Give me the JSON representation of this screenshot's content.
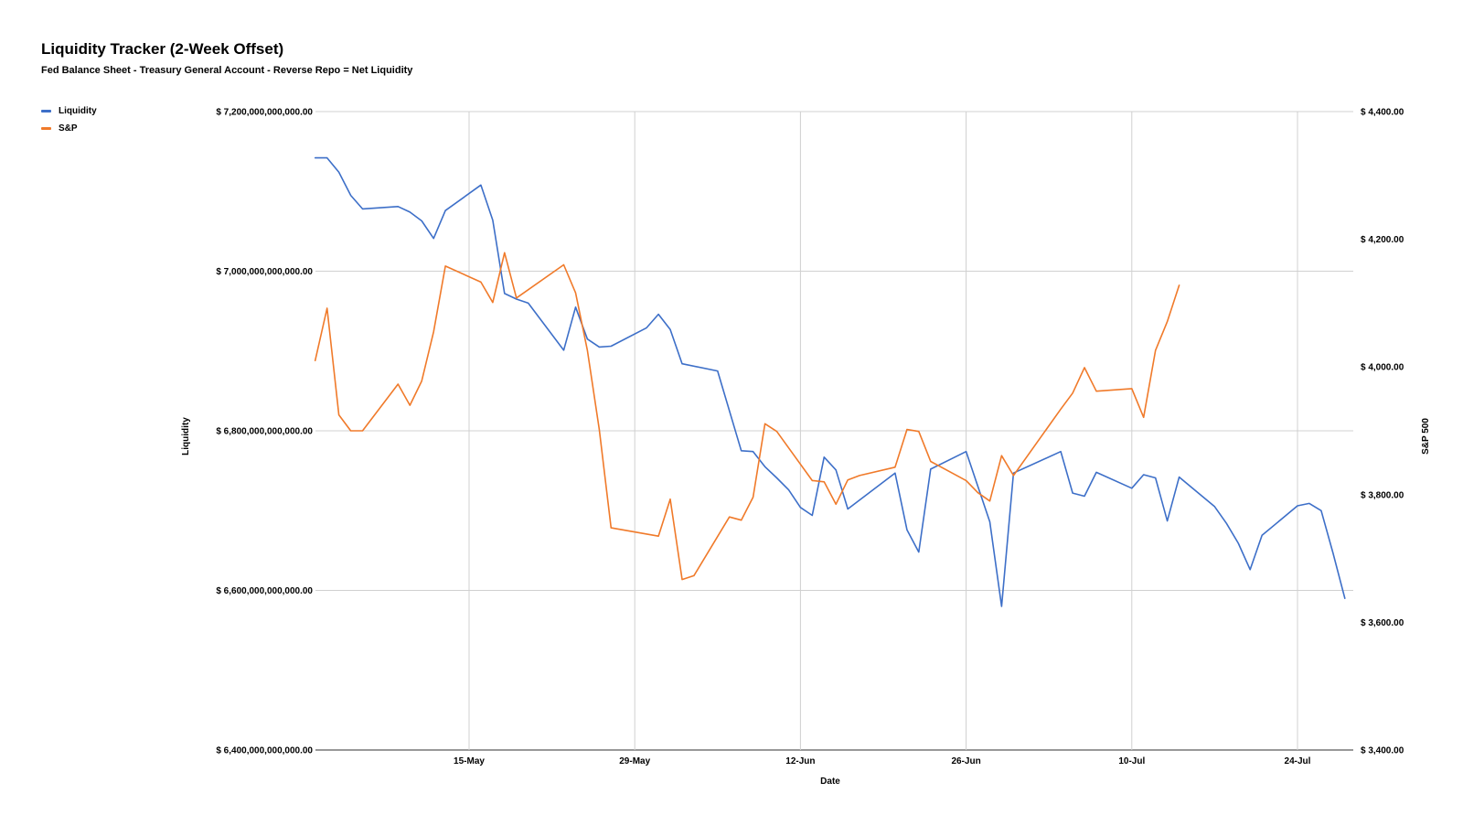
{
  "chart_data": {
    "type": "line",
    "title": "Liquidity Tracker (2-Week Offset)",
    "subtitle": "Fed Balance Sheet - Treasury General Account - Reverse Repo = Net Liquidity",
    "xlabel": "Date",
    "ylabel_left": "Liquidity",
    "ylabel_right": "S&P 500",
    "legend_position": "top-left",
    "grid": true,
    "x_range": [
      "2023-05-04",
      "2023-07-30"
    ],
    "x_ticks": [
      {
        "date": "2023-05-15",
        "label": "15-May"
      },
      {
        "date": "2023-05-29",
        "label": "29-May"
      },
      {
        "date": "2023-06-12",
        "label": "12-Jun"
      },
      {
        "date": "2023-06-26",
        "label": "26-Jun"
      },
      {
        "date": "2023-07-10",
        "label": "10-Jul"
      },
      {
        "date": "2023-07-24",
        "label": "24-Jul"
      }
    ],
    "ylim_left": [
      6400000000000,
      7200000000000
    ],
    "yticks_left": [
      {
        "value": 6400000000000,
        "label": "$ 6,400,000,000,000.00"
      },
      {
        "value": 6600000000000,
        "label": "$ 6,600,000,000,000.00"
      },
      {
        "value": 6800000000000,
        "label": "$ 6,800,000,000,000.00"
      },
      {
        "value": 7000000000000,
        "label": "$ 7,000,000,000,000.00"
      },
      {
        "value": 7200000000000,
        "label": "$ 7,200,000,000,000.00"
      }
    ],
    "ylim_right": [
      3400,
      4400
    ],
    "yticks_right": [
      {
        "value": 3400,
        "label": "$ 3,400.00"
      },
      {
        "value": 3600,
        "label": "$ 3,600.00"
      },
      {
        "value": 3800,
        "label": "$ 3,800.00"
      },
      {
        "value": 4000,
        "label": "$ 4,000.00"
      },
      {
        "value": 4200,
        "label": "$ 4,200.00"
      },
      {
        "value": 4400,
        "label": "$ 4,400.00"
      }
    ],
    "series": [
      {
        "name": "Liquidity",
        "axis": "left",
        "color": "#3d6fc8",
        "points": [
          [
            "2023-05-02",
            7142000000000
          ],
          [
            "2023-05-03",
            7142000000000
          ],
          [
            "2023-05-04",
            7124000000000
          ],
          [
            "2023-05-05",
            7095000000000
          ],
          [
            "2023-05-06",
            7078000000000
          ],
          [
            "2023-05-09",
            7081000000000
          ],
          [
            "2023-05-10",
            7074000000000
          ],
          [
            "2023-05-11",
            7063000000000
          ],
          [
            "2023-05-12",
            7041000000000
          ],
          [
            "2023-05-13",
            7076000000000
          ],
          [
            "2023-05-16",
            7108000000000
          ],
          [
            "2023-05-17",
            7064000000000
          ],
          [
            "2023-05-18",
            6972000000000
          ],
          [
            "2023-05-19",
            6965000000000
          ],
          [
            "2023-05-20",
            6960000000000
          ],
          [
            "2023-05-23",
            6901000000000
          ],
          [
            "2023-05-24",
            6955000000000
          ],
          [
            "2023-05-25",
            6915000000000
          ],
          [
            "2023-05-26",
            6905000000000
          ],
          [
            "2023-05-27",
            6906000000000
          ],
          [
            "2023-05-30",
            6929000000000
          ],
          [
            "2023-05-31",
            6946000000000
          ],
          [
            "2023-06-01",
            6927000000000
          ],
          [
            "2023-06-02",
            6884000000000
          ],
          [
            "2023-06-05",
            6875000000000
          ],
          [
            "2023-06-07",
            6775000000000
          ],
          [
            "2023-06-08",
            6774000000000
          ],
          [
            "2023-06-09",
            6755000000000
          ],
          [
            "2023-06-10",
            6741000000000
          ],
          [
            "2023-06-11",
            6726000000000
          ],
          [
            "2023-06-12",
            6704000000000
          ],
          [
            "2023-06-13",
            6694000000000
          ],
          [
            "2023-06-14",
            6767000000000
          ],
          [
            "2023-06-15",
            6751000000000
          ],
          [
            "2023-06-16",
            6702000000000
          ],
          [
            "2023-06-20",
            6747000000000
          ],
          [
            "2023-06-21",
            6676000000000
          ],
          [
            "2023-06-22",
            6648000000000
          ],
          [
            "2023-06-23",
            6752000000000
          ],
          [
            "2023-06-26",
            6774000000000
          ],
          [
            "2023-06-28",
            6686000000000
          ],
          [
            "2023-06-29",
            6580000000000
          ],
          [
            "2023-06-30",
            6747000000000
          ],
          [
            "2023-07-04",
            6774000000000
          ],
          [
            "2023-07-05",
            6722000000000
          ],
          [
            "2023-07-06",
            6718000000000
          ],
          [
            "2023-07-07",
            6748000000000
          ],
          [
            "2023-07-10",
            6728000000000
          ],
          [
            "2023-07-11",
            6745000000000
          ],
          [
            "2023-07-12",
            6741000000000
          ],
          [
            "2023-07-13",
            6687000000000
          ],
          [
            "2023-07-14",
            6742000000000
          ],
          [
            "2023-07-17",
            6705000000000
          ],
          [
            "2023-07-18",
            6684000000000
          ],
          [
            "2023-07-19",
            6659000000000
          ],
          [
            "2023-07-20",
            6626000000000
          ],
          [
            "2023-07-21",
            6669000000000
          ],
          [
            "2023-07-24",
            6706000000000
          ],
          [
            "2023-07-25",
            6709000000000
          ],
          [
            "2023-07-26",
            6700000000000
          ],
          [
            "2023-07-27",
            6647000000000
          ],
          [
            "2023-07-28",
            6590000000000
          ]
        ]
      },
      {
        "name": "S&P",
        "axis": "right",
        "color": "#f07a2a",
        "points": [
          [
            "2023-05-02",
            4010
          ],
          [
            "2023-05-03",
            4092
          ],
          [
            "2023-05-04",
            3925
          ],
          [
            "2023-05-05",
            3900
          ],
          [
            "2023-05-06",
            3900
          ],
          [
            "2023-05-09",
            3973
          ],
          [
            "2023-05-10",
            3940
          ],
          [
            "2023-05-11",
            3978
          ],
          [
            "2023-05-12",
            4055
          ],
          [
            "2023-05-13",
            4158
          ],
          [
            "2023-05-16",
            4133
          ],
          [
            "2023-05-17",
            4101
          ],
          [
            "2023-05-18",
            4179
          ],
          [
            "2023-05-19",
            4108
          ],
          [
            "2023-05-23",
            4160
          ],
          [
            "2023-05-24",
            4116
          ],
          [
            "2023-05-25",
            4026
          ],
          [
            "2023-05-26",
            3902
          ],
          [
            "2023-05-27",
            3748
          ],
          [
            "2023-05-31",
            3735
          ],
          [
            "2023-06-01",
            3793
          ],
          [
            "2023-06-02",
            3667
          ],
          [
            "2023-06-03",
            3673
          ],
          [
            "2023-06-06",
            3765
          ],
          [
            "2023-06-07",
            3760
          ],
          [
            "2023-06-08",
            3796
          ],
          [
            "2023-06-09",
            3911
          ],
          [
            "2023-06-10",
            3899
          ],
          [
            "2023-06-13",
            3822
          ],
          [
            "2023-06-14",
            3820
          ],
          [
            "2023-06-15",
            3785
          ],
          [
            "2023-06-16",
            3823
          ],
          [
            "2023-06-17",
            3830
          ],
          [
            "2023-06-20",
            3843
          ],
          [
            "2023-06-21",
            3902
          ],
          [
            "2023-06-22",
            3899
          ],
          [
            "2023-06-23",
            3852
          ],
          [
            "2023-06-26",
            3822
          ],
          [
            "2023-06-27",
            3803
          ],
          [
            "2023-06-28",
            3790
          ],
          [
            "2023-06-29",
            3861
          ],
          [
            "2023-06-30",
            3830
          ],
          [
            "2023-07-04",
            3934
          ],
          [
            "2023-07-05",
            3959
          ],
          [
            "2023-07-06",
            3999
          ],
          [
            "2023-07-07",
            3962
          ],
          [
            "2023-07-10",
            3966
          ],
          [
            "2023-07-11",
            3921
          ],
          [
            "2023-07-12",
            4026
          ],
          [
            "2023-07-13",
            4071
          ],
          [
            "2023-07-14",
            4128
          ]
        ]
      }
    ]
  }
}
